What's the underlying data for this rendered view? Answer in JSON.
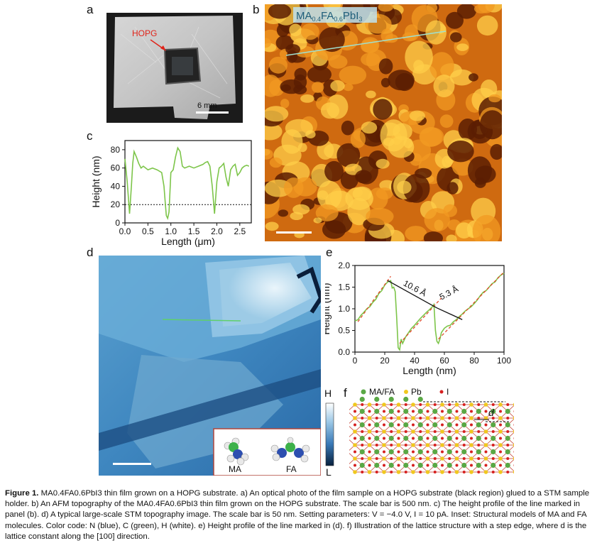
{
  "panels": {
    "a": {
      "label": "a",
      "hopg_label": "HOPG",
      "scale_text": "6 mm"
    },
    "b": {
      "label": "b",
      "sample_prefix": "MA",
      "sample_ma_sub": "0.4",
      "sample_mid": "FA",
      "sample_fa_sub": "0.6",
      "sample_suffix": "PbI",
      "sample_i_sub": "3"
    },
    "c": {
      "label": "c"
    },
    "d": {
      "label": "d",
      "colorbar_high": "H",
      "colorbar_low": "L",
      "inset_ma": "MA",
      "inset_fa": "FA"
    },
    "e": {
      "label": "e",
      "annot_1": "10.6 Å",
      "annot_2": "5.3 Å"
    },
    "f": {
      "label": "f",
      "legend_mafa": "MA/FA",
      "legend_pb": "Pb",
      "legend_i": "I",
      "d_label": "d"
    }
  },
  "colors": {
    "green_curve": "#7dc54a",
    "red_dash": "#e04a2a",
    "mafa": "#5aa845",
    "pb": "#f0c81e",
    "i": "#d62020",
    "lattice": "#c0392b"
  },
  "chart_data": [
    {
      "type": "line",
      "panel": "c",
      "xlabel": "Length (μm)",
      "ylabel": "Height (nm)",
      "xlim": [
        0,
        2.75
      ],
      "ylim": [
        0,
        90
      ],
      "xticks": [
        "0.0",
        "0.5",
        "1.0",
        "1.5",
        "2.0",
        "2.5"
      ],
      "yticks": [
        "0",
        "20",
        "40",
        "60",
        "80"
      ],
      "reference_line_y": 20,
      "series": [
        {
          "x": [
            0.0,
            0.05,
            0.1,
            0.14,
            0.17,
            0.2,
            0.25,
            0.3,
            0.35,
            0.4,
            0.5,
            0.6,
            0.7,
            0.8,
            0.85,
            0.88,
            0.9,
            0.93,
            0.96,
            1.0,
            1.05,
            1.1,
            1.15,
            1.2,
            1.25,
            1.3,
            1.4,
            1.5,
            1.6,
            1.7,
            1.75,
            1.8,
            1.85,
            1.9,
            1.95,
            2.0,
            2.05,
            2.1,
            2.15,
            2.2,
            2.25,
            2.3,
            2.35,
            2.4,
            2.45,
            2.5,
            2.55,
            2.6,
            2.65,
            2.7
          ],
          "y": [
            70,
            45,
            10,
            40,
            65,
            78,
            72,
            65,
            60,
            62,
            58,
            60,
            58,
            55,
            40,
            20,
            8,
            5,
            12,
            55,
            58,
            72,
            82,
            78,
            62,
            60,
            62,
            60,
            62,
            64,
            66,
            67,
            62,
            40,
            10,
            45,
            60,
            62,
            65,
            50,
            40,
            58,
            62,
            64,
            52,
            55,
            60,
            62,
            63,
            62
          ]
        }
      ]
    },
    {
      "type": "line",
      "panel": "e",
      "xlabel": "Length (nm)",
      "ylabel": "Height (nm)",
      "xlim": [
        0,
        100
      ],
      "ylim": [
        0,
        2.0
      ],
      "xticks": [
        "0",
        "20",
        "40",
        "60",
        "80",
        "100"
      ],
      "yticks": [
        "0.0",
        "0.5",
        "1.0",
        "1.5",
        "2.0"
      ],
      "series": [
        {
          "x": [
            0,
            2,
            4,
            6,
            8,
            10,
            12,
            14,
            16,
            18,
            20,
            22,
            24,
            25,
            26,
            27,
            28,
            29,
            30,
            31,
            32,
            34,
            36,
            38,
            40,
            42,
            44,
            46,
            48,
            50,
            52,
            53,
            54,
            55,
            56,
            57,
            58,
            60,
            62,
            64,
            66,
            68,
            70,
            72,
            74,
            76,
            78,
            80,
            82,
            84,
            86,
            88,
            90,
            92,
            94,
            96,
            98,
            100
          ],
          "y": [
            0.72,
            0.75,
            0.85,
            0.92,
            1.0,
            1.05,
            1.15,
            1.22,
            1.35,
            1.42,
            1.55,
            1.62,
            1.65,
            1.48,
            1.5,
            1.4,
            0.8,
            0.1,
            0.05,
            0.3,
            0.2,
            0.35,
            0.45,
            0.55,
            0.62,
            0.7,
            0.78,
            0.85,
            0.92,
            0.98,
            1.05,
            1.1,
            0.5,
            0.25,
            0.2,
            0.3,
            0.45,
            0.55,
            0.6,
            0.62,
            0.7,
            0.75,
            0.82,
            0.88,
            0.95,
            1.0,
            1.05,
            1.12,
            1.2,
            1.3,
            1.38,
            1.42,
            1.5,
            1.58,
            1.62,
            1.72,
            1.78,
            1.82
          ]
        }
      ]
    }
  ],
  "caption": {
    "fig_label": "Figure 1.",
    "text": " MA0.4FA0.6PbI3 thin film grown on a HOPG substrate. a) An optical photo of the film sample on a HOPG substrate (black region) glued to a STM sample holder. b) An AFM topography of the MA0.4FA0.6PbI3 thin film grown on the HOPG substrate. The scale bar is 500 nm. c) The height profile of the line marked in panel (b). d) A typical large-scale STM topography image. The scale bar is 50 nm. Setting parameters: V = −4.0 V, I = 10 pA. Inset: Structural models of MA and FA molecules. Color code: N (blue), C (green), H (white). e) Height profile of the line marked in (d). f) Illustration of the lattice structure with a step edge, where d is the lattice constant along the [100] direction."
  }
}
